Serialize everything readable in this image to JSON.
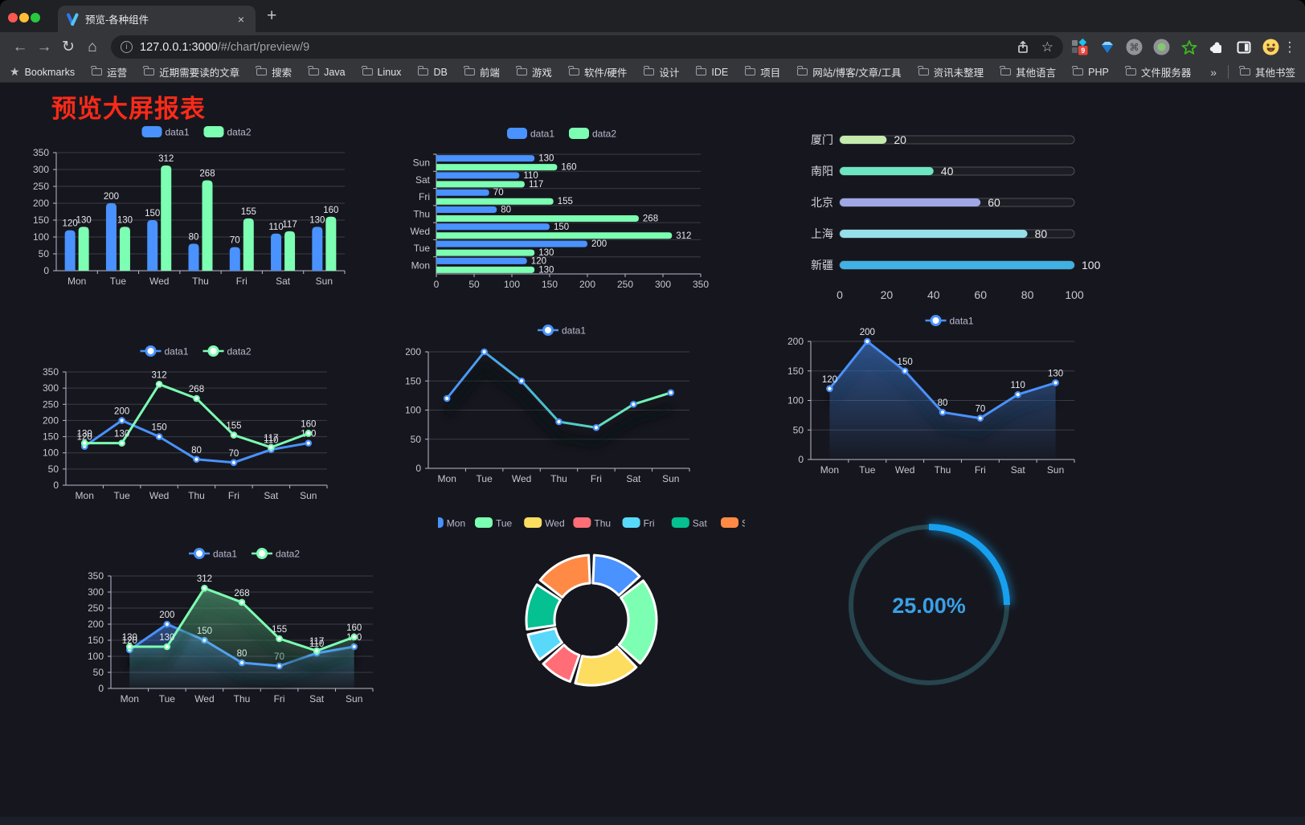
{
  "browser": {
    "traffic_lights": {
      "close": "#fb5850",
      "minimize": "#fdbe35",
      "zoom": "#29c83f"
    },
    "tab": {
      "title": "预览-各种组件",
      "close": "×",
      "new_tab": "+"
    },
    "url": {
      "host": "127.0.0.1:3000",
      "path": "/#/chart/preview/9"
    },
    "nav": {
      "back": "←",
      "forward": "→",
      "reload": "↻",
      "home": "⌂"
    },
    "actions": {
      "star": "☆",
      "menu": "⋮",
      "extension_badge": "9",
      "overflow": "»",
      "command_glyph": "⌘"
    },
    "bookmarks_label": "Bookmarks",
    "bookmarks": [
      "运营",
      "近期需要读的文章",
      "搜索",
      "Java",
      "Linux",
      "DB",
      "前端",
      "游戏",
      "软件/硬件",
      "设计",
      "IDE",
      "项目",
      "网站/博客/文章/工具",
      "资讯未整理",
      "其他语言",
      "PHP",
      "文件服务器"
    ],
    "other_bookmarks": "其他书签"
  },
  "page": {
    "title": "预览大屏报表",
    "title_color": "#fa2a19",
    "background": "#16171e"
  },
  "chart_data": [
    {
      "type": "bar",
      "name": "grouped-bar-chart",
      "categories": [
        "Mon",
        "Tue",
        "Wed",
        "Thu",
        "Fri",
        "Sat",
        "Sun"
      ],
      "series": [
        {
          "name": "data1",
          "color": "#4992ff",
          "values": [
            120,
            200,
            150,
            80,
            70,
            110,
            130
          ]
        },
        {
          "name": "data2",
          "color": "#7cffb2",
          "values": [
            130,
            130,
            312,
            268,
            155,
            117,
            160
          ]
        }
      ],
      "ylim": [
        0,
        350
      ],
      "ytick": 50,
      "legend": true,
      "value_labels": true,
      "grid": true
    },
    {
      "type": "hbar",
      "name": "horizontal-bar-chart",
      "categories": [
        "Mon",
        "Tue",
        "Wed",
        "Thu",
        "Fri",
        "Sat",
        "Sun"
      ],
      "series": [
        {
          "name": "data1",
          "color": "#4992ff",
          "values": [
            120,
            200,
            150,
            80,
            70,
            110,
            130
          ]
        },
        {
          "name": "data2",
          "color": "#7cffb2",
          "values": [
            130,
            130,
            312,
            268,
            155,
            117,
            160
          ]
        }
      ],
      "xlim": [
        0,
        350
      ],
      "xtick": 50,
      "legend": true,
      "value_labels": true,
      "grid": true
    },
    {
      "type": "progress",
      "name": "progress-bar-chart",
      "rows": [
        {
          "label": "厦门",
          "value": 20,
          "color": "#c4ebad"
        },
        {
          "label": "南阳",
          "value": 40,
          "color": "#6be6c1"
        },
        {
          "label": "北京",
          "value": 60,
          "color": "#a0a7e6"
        },
        {
          "label": "上海",
          "value": 80,
          "color": "#96dee8"
        },
        {
          "label": "新疆",
          "value": 100,
          "color": "#3fb1e3"
        }
      ],
      "xlim": [
        0,
        100
      ],
      "xticks": [
        0,
        20,
        40,
        60,
        80,
        100
      ]
    },
    {
      "type": "line",
      "name": "multi-line-chart",
      "categories": [
        "Mon",
        "Tue",
        "Wed",
        "Thu",
        "Fri",
        "Sat",
        "Sun"
      ],
      "series": [
        {
          "name": "data1",
          "color": "#4992ff",
          "values": [
            120,
            200,
            150,
            80,
            70,
            110,
            130
          ]
        },
        {
          "name": "data2",
          "color": "#7cffb2",
          "values": [
            130,
            130,
            312,
            268,
            155,
            117,
            160
          ]
        }
      ],
      "ylim": [
        0,
        350
      ],
      "ytick": 50,
      "legend": true,
      "value_labels": true
    },
    {
      "type": "line",
      "name": "gradient-line-chart",
      "categories": [
        "Mon",
        "Tue",
        "Wed",
        "Thu",
        "Fri",
        "Sat",
        "Sun"
      ],
      "series": [
        {
          "name": "data1",
          "color": "#4992ff",
          "gradient": [
            "#4992ff",
            "#4bc4c9",
            "#7cffb2"
          ],
          "values": [
            120,
            200,
            150,
            80,
            70,
            110,
            130
          ]
        }
      ],
      "ylim": [
        0,
        200
      ],
      "ytick": 50,
      "legend": true,
      "value_labels": false,
      "shadow": true
    },
    {
      "type": "area",
      "name": "area-line-chart",
      "categories": [
        "Mon",
        "Tue",
        "Wed",
        "Thu",
        "Fri",
        "Sat",
        "Sun"
      ],
      "series": [
        {
          "name": "data1",
          "color": "#4992ff",
          "fill_opacity": 0.5,
          "values": [
            120,
            200,
            150,
            80,
            70,
            110,
            130
          ]
        }
      ],
      "ylim": [
        0,
        200
      ],
      "ytick": 50,
      "legend": true,
      "value_labels": true,
      "shadow": true
    },
    {
      "type": "area",
      "name": "dual-area-line-chart",
      "categories": [
        "Mon",
        "Tue",
        "Wed",
        "Thu",
        "Fri",
        "Sat",
        "Sun"
      ],
      "series": [
        {
          "name": "data1",
          "color": "#4992ff",
          "fill_opacity": 0.45,
          "values": [
            120,
            200,
            150,
            80,
            70,
            110,
            130
          ]
        },
        {
          "name": "data2",
          "color": "#7cffb2",
          "fill_opacity": 0.4,
          "values": [
            130,
            130,
            312,
            268,
            155,
            117,
            160
          ]
        }
      ],
      "ylim": [
        0,
        350
      ],
      "ytick": 50,
      "legend": true,
      "value_labels": true,
      "shadow": true
    },
    {
      "type": "donut",
      "name": "donut-chart",
      "slices": [
        {
          "name": "Mon",
          "value": 120,
          "color": "#4992ff"
        },
        {
          "name": "Tue",
          "value": 200,
          "color": "#7cffb2"
        },
        {
          "name": "Wed",
          "value": 150,
          "color": "#fddd60"
        },
        {
          "name": "Thu",
          "value": 80,
          "color": "#ff6e76"
        },
        {
          "name": "Fri",
          "value": 70,
          "color": "#58d9f9"
        },
        {
          "name": "Sat",
          "value": 110,
          "color": "#05c091"
        },
        {
          "name": "Sun",
          "value": 130,
          "color": "#ff8a45"
        }
      ],
      "legend": true,
      "border_color": "#ffffff"
    },
    {
      "type": "ring",
      "name": "ring-progress-gauge",
      "label": "25.00%",
      "percent": 25,
      "color": "#17a0ef",
      "track_color": "#26454e",
      "text_color": "#3aa0e8"
    }
  ]
}
